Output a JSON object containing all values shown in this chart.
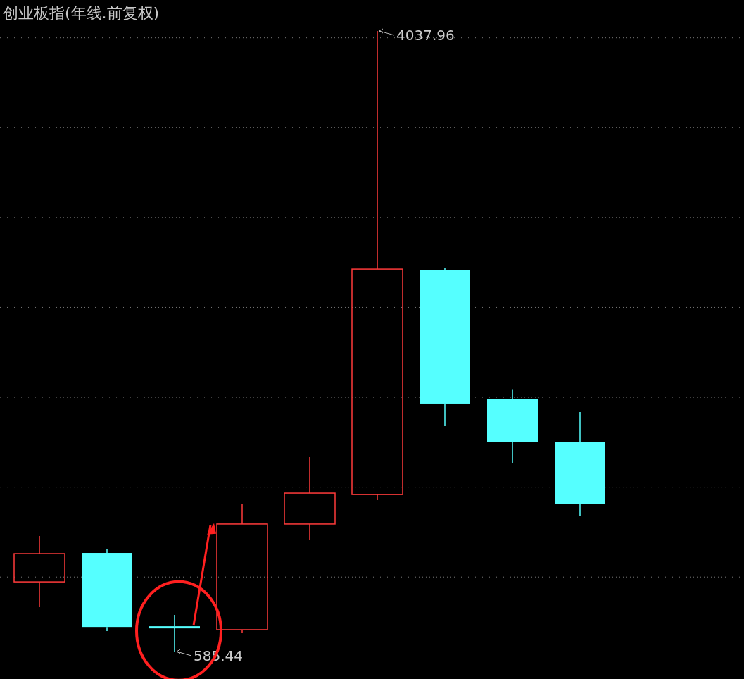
{
  "chart_data": {
    "type": "candlestick",
    "title": "创业板指(年线.前复权)",
    "categories": [
      null,
      null,
      null,
      null,
      null,
      null,
      null,
      null,
      null
    ],
    "ohlc": [
      [
        973,
        1228,
        832,
        1130
      ],
      [
        1134,
        1157,
        699,
        722
      ],
      [
        726,
        789,
        585.44,
        719
      ],
      [
        707,
        1408,
        691,
        1295
      ],
      [
        1295,
        1667,
        1208,
        1467
      ],
      [
        1459,
        4037.96,
        1428,
        2713
      ],
      [
        2709,
        2717,
        1839,
        1965
      ],
      [
        1992,
        2045,
        1636,
        1753
      ],
      [
        1753,
        1918,
        1338,
        1408
      ]
    ],
    "colors": [
      "#ff3b3b",
      "#55ffff",
      "#55ffff",
      "#ff3b3b",
      "#ff3b3b",
      "#ff3b3b",
      "#55ffff",
      "#55ffff",
      "#55ffff"
    ],
    "yticks": [
      {
        "value": 1000,
        "label": null
      },
      {
        "value": 1500,
        "label": null
      },
      {
        "value": 2000,
        "label": null
      },
      {
        "value": 2500,
        "label": null
      },
      {
        "value": 3000,
        "label": null
      },
      {
        "value": 3500,
        "label": null
      },
      {
        "value": 4000,
        "label": null
      }
    ],
    "grid": "y",
    "annotations": [
      "4037.96",
      "585.44"
    ]
  }
}
